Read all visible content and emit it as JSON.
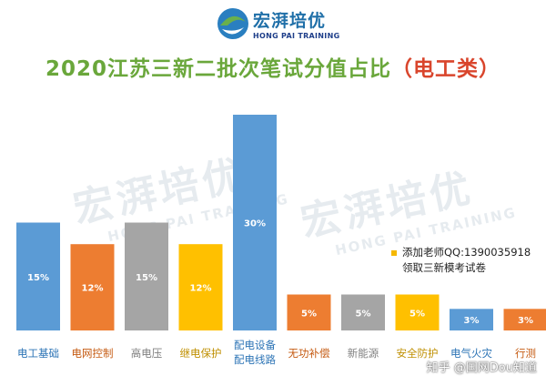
{
  "brand": {
    "name": "宏湃培优",
    "subtitle": "HONG PAI TRAINING"
  },
  "title": {
    "main": "2020江苏三新二批次笔试分值占比",
    "suffix": "（电工类）"
  },
  "note": {
    "line1": "添加老师QQ:1390035918",
    "line2": "领取三新模考试卷"
  },
  "watermark_text": "宏湃培优",
  "watermark_sub": "HONG PAI TRAINING",
  "footer_watermark": "知乎 @国网Dou知道",
  "chart_data": {
    "type": "bar",
    "categories": [
      "电工基础",
      "电网控制",
      "高电压",
      "继电保护",
      "配电设备\n配电线路",
      "无功补偿",
      "新能源",
      "安全防护",
      "电气火灾",
      "行测"
    ],
    "values": [
      15,
      12,
      15,
      12,
      30,
      5,
      5,
      5,
      3,
      3
    ],
    "value_labels": [
      "15%",
      "12%",
      "15%",
      "12%",
      "30%",
      "5%",
      "5%",
      "5%",
      "3%",
      "3%"
    ],
    "colors": [
      "#5b9bd5",
      "#ed7d31",
      "#a5a5a5",
      "#ffc000",
      "#5b9bd5",
      "#ed7d31",
      "#a5a5a5",
      "#ffc000",
      "#5b9bd5",
      "#ed7d31"
    ],
    "ylim": [
      0,
      30
    ],
    "grid": false
  }
}
